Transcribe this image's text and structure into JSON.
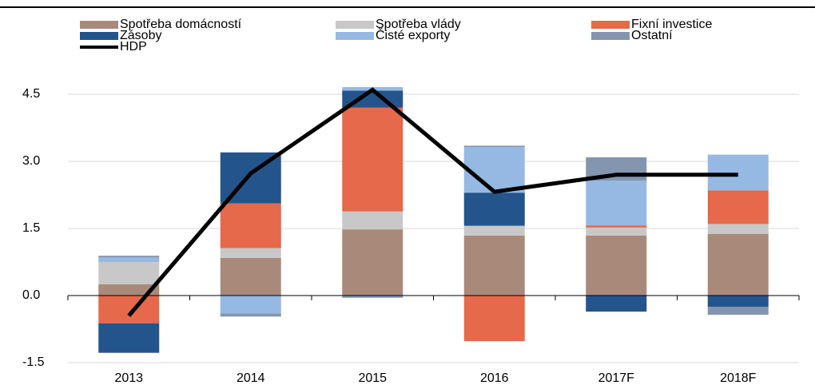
{
  "chart_data": {
    "type": "bar",
    "categories": [
      "2013",
      "2014",
      "2015",
      "2016",
      "2017F",
      "2018F"
    ],
    "series": [
      {
        "name": "Spotřeba domácností",
        "color": "#a98a7a",
        "values": [
          0.25,
          0.84,
          1.48,
          1.34,
          1.34,
          1.38
        ]
      },
      {
        "name": "Spotřeba vlády",
        "color": "#c8c8c8",
        "values": [
          0.5,
          0.22,
          0.4,
          0.22,
          0.18,
          0.22
        ]
      },
      {
        "name": "Fixní investice",
        "color": "#e5694a",
        "values": [
          -0.62,
          1.0,
          2.32,
          -1.02,
          0.05,
          0.75
        ]
      },
      {
        "name": "Zásoby",
        "color": "#24548c",
        "values": [
          -0.66,
          1.14,
          0.38,
          0.74,
          -0.36,
          -0.25
        ]
      },
      {
        "name": "Čisté exporty",
        "color": "#96b9e3",
        "values": [
          0.1,
          -0.4,
          0.08,
          1.02,
          1.0,
          0.8
        ]
      },
      {
        "name": "Ostatní",
        "color": "#8495b0",
        "values": [
          0.04,
          -0.07,
          -0.05,
          0.03,
          0.52,
          -0.18
        ]
      },
      {
        "name": "HDP",
        "type": "line",
        "color": "#000000",
        "values": [
          -0.45,
          2.73,
          4.6,
          2.32,
          2.7,
          2.7
        ]
      }
    ],
    "ylim": [
      -1.5,
      5.0
    ],
    "yticks": [
      -1.5,
      {
        "value": 0,
        "label": "0.0"
      },
      1.5,
      {
        "value": 3,
        "label": "3.0"
      },
      4.5
    ],
    "grid": true,
    "stacked": true,
    "legend": "top"
  }
}
